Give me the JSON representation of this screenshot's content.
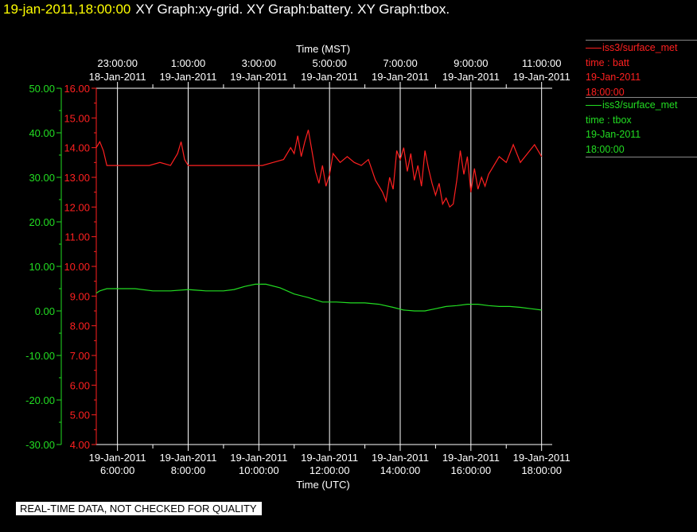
{
  "header": {
    "timestamp": "19-jan-2011,18:00:00",
    "titles": "XY Graph:xy-grid.  XY Graph:battery.  XY Graph:tbox."
  },
  "legend": [
    {
      "station": "iss3/surface_met",
      "var": "time : batt",
      "date": "19-Jan-2011",
      "time": "18:00:00",
      "color": "#ff2020"
    },
    {
      "station": "iss3/surface_met",
      "var": "time : tbox",
      "date": "19-Jan-2011",
      "time": "18:00:00",
      "color": "#22dd22"
    }
  ],
  "disclaimer": "REAL-TIME DATA, NOT CHECKED FOR QUALITY",
  "chart_data": {
    "type": "line",
    "x_bottom_label": "Time (UTC)",
    "x_top_label": "Time (MST)",
    "x_range_utc_hours": [
      5.4,
      18.3
    ],
    "bottom_ticks": [
      {
        "hour": 6,
        "date": "19-Jan-2011",
        "time": "6:00:00"
      },
      {
        "hour": 8,
        "date": "19-Jan-2011",
        "time": "8:00:00"
      },
      {
        "hour": 10,
        "date": "19-Jan-2011",
        "time": "10:00:00"
      },
      {
        "hour": 12,
        "date": "19-Jan-2011",
        "time": "12:00:00"
      },
      {
        "hour": 14,
        "date": "19-Jan-2011",
        "time": "14:00:00"
      },
      {
        "hour": 16,
        "date": "19-Jan-2011",
        "time": "16:00:00"
      },
      {
        "hour": 18,
        "date": "19-Jan-2011",
        "time": "18:00:00"
      }
    ],
    "top_ticks": [
      {
        "hour": 6,
        "time": "23:00:00",
        "date": "18-Jan-2011"
      },
      {
        "hour": 8,
        "time": "1:00:00",
        "date": "19-Jan-2011"
      },
      {
        "hour": 10,
        "time": "3:00:00",
        "date": "19-Jan-2011"
      },
      {
        "hour": 12,
        "time": "5:00:00",
        "date": "19-Jan-2011"
      },
      {
        "hour": 14,
        "time": "7:00:00",
        "date": "19-Jan-2011"
      },
      {
        "hour": 16,
        "time": "9:00:00",
        "date": "19-Jan-2011"
      },
      {
        "hour": 18,
        "time": "11:00:00",
        "date": "19-Jan-2011"
      }
    ],
    "grid": {
      "vertical": true,
      "horizontal": false
    },
    "y_left": {
      "color": "#22dd22",
      "range": [
        -30,
        50
      ],
      "ticks": [
        "50.00",
        "40.00",
        "30.00",
        "20.00",
        "10.00",
        "0.00",
        "-10.00",
        "-20.00",
        "-30.00"
      ]
    },
    "y_right": {
      "color": "#ff2020",
      "range": [
        4,
        16
      ],
      "ticks": [
        "16.00",
        "15.00",
        "14.00",
        "13.00",
        "12.00",
        "11.00",
        "10.00",
        "9.00",
        "8.00",
        "7.00",
        "6.00",
        "5.00",
        "4.00"
      ]
    },
    "series": [
      {
        "axis": "right",
        "color": "#ff2020",
        "hours": [
          5.4,
          5.5,
          5.6,
          5.7,
          6.0,
          6.3,
          6.6,
          6.9,
          7.2,
          7.5,
          7.7,
          7.8,
          7.9,
          8.0,
          8.3,
          8.6,
          8.9,
          9.2,
          9.5,
          9.8,
          10.1,
          10.4,
          10.7,
          10.9,
          11.0,
          11.1,
          11.2,
          11.3,
          11.4,
          11.5,
          11.6,
          11.7,
          11.8,
          11.9,
          12.0,
          12.1,
          12.3,
          12.5,
          12.7,
          12.9,
          13.1,
          13.3,
          13.5,
          13.6,
          13.7,
          13.8,
          13.9,
          14.0,
          14.1,
          14.2,
          14.3,
          14.4,
          14.5,
          14.6,
          14.7,
          14.8,
          14.9,
          15.0,
          15.1,
          15.2,
          15.3,
          15.4,
          15.5,
          15.6,
          15.7,
          15.8,
          15.9,
          16.0,
          16.1,
          16.2,
          16.3,
          16.4,
          16.5,
          16.6,
          16.8,
          17.0,
          17.2,
          17.4,
          17.6,
          17.8,
          18.0
        ],
        "values": [
          14.0,
          14.2,
          13.9,
          13.4,
          13.4,
          13.4,
          13.4,
          13.4,
          13.5,
          13.4,
          13.8,
          14.2,
          13.6,
          13.4,
          13.4,
          13.4,
          13.4,
          13.4,
          13.4,
          13.4,
          13.4,
          13.5,
          13.6,
          14.0,
          13.8,
          14.4,
          13.7,
          14.2,
          14.6,
          13.9,
          13.2,
          12.8,
          13.4,
          12.7,
          13.1,
          13.8,
          13.5,
          13.7,
          13.5,
          13.4,
          13.6,
          12.9,
          12.5,
          12.2,
          13.0,
          12.6,
          13.9,
          13.6,
          14.0,
          13.2,
          13.8,
          12.9,
          13.4,
          12.7,
          13.9,
          13.3,
          12.8,
          12.4,
          12.8,
          12.1,
          12.3,
          12.0,
          12.1,
          12.9,
          13.9,
          13.1,
          13.7,
          12.5,
          13.3,
          12.6,
          13.0,
          12.7,
          13.1,
          13.3,
          13.7,
          13.5,
          14.1,
          13.5,
          13.8,
          14.1,
          13.7
        ]
      },
      {
        "axis": "left",
        "color": "#22dd22",
        "hours": [
          5.4,
          5.5,
          5.7,
          6.0,
          6.5,
          7.0,
          7.5,
          8.0,
          8.5,
          9.0,
          9.3,
          9.6,
          9.9,
          10.2,
          10.6,
          11.0,
          11.4,
          11.8,
          12.2,
          12.6,
          13.0,
          13.4,
          13.8,
          14.1,
          14.4,
          14.7,
          15.0,
          15.3,
          15.6,
          15.9,
          16.2,
          16.5,
          16.8,
          17.1,
          17.4,
          17.7,
          18.0
        ],
        "values": [
          4.0,
          4.5,
          5.0,
          5.0,
          5.0,
          4.5,
          4.5,
          4.8,
          4.5,
          4.5,
          4.8,
          5.5,
          6.0,
          6.0,
          5.2,
          3.8,
          3.0,
          2.0,
          2.0,
          1.8,
          1.8,
          1.5,
          0.8,
          0.2,
          0.0,
          0.0,
          0.5,
          1.0,
          1.2,
          1.5,
          1.5,
          1.2,
          1.0,
          1.0,
          0.8,
          0.5,
          0.2
        ]
      }
    ]
  }
}
